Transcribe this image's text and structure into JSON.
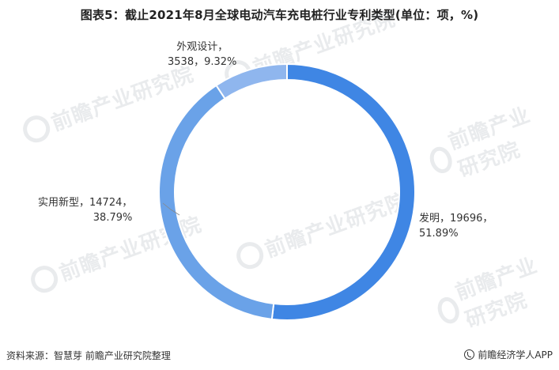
{
  "title": "图表5：截止2021年8月全球电动汽车充电桩行业专利类型(单位：项，%)",
  "source": "资料来源：智慧芽 前瞻产业研究院整理",
  "brand": "前瞻经济学人APP",
  "watermark_text": "前瞻产业研究院",
  "colors": {
    "发明": "#3f86e4",
    "实用新型": "#6aa2e8",
    "外观设计": "#8fb6ee",
    "separator": "#ffffff"
  },
  "chart_data": {
    "type": "pie",
    "title": "图表5：截止2021年8月全球电动汽车充电桩行业专利类型(单位：项，%)",
    "donut": true,
    "legend": "none",
    "slices": [
      {
        "name": "发明",
        "value": 19696,
        "percent": 51.89,
        "label_line1": "发明，19696，",
        "label_line2": "51.89%"
      },
      {
        "name": "实用新型",
        "value": 14724,
        "percent": 38.79,
        "label_line1": "实用新型，14724，",
        "label_line2": "38.79%"
      },
      {
        "name": "外观设计",
        "value": 3538,
        "percent": 9.32,
        "label_line1": "外观设计，",
        "label_line2": "3538，9.32%"
      }
    ]
  }
}
